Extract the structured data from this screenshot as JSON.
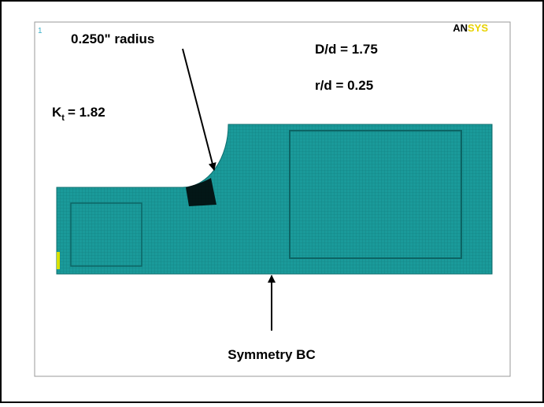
{
  "figure": {
    "corner_number": "1",
    "logo": {
      "part1": "AN",
      "part2": "SYS"
    },
    "radius_label": "0.250\" radius",
    "ratio_D_d": "D/d = 1.75",
    "ratio_r_d": "r/d = 0.25",
    "kt": {
      "symbol": "K",
      "subscript": "t",
      "value": "= 1.82"
    },
    "bc_label": "Symmetry BC"
  }
}
